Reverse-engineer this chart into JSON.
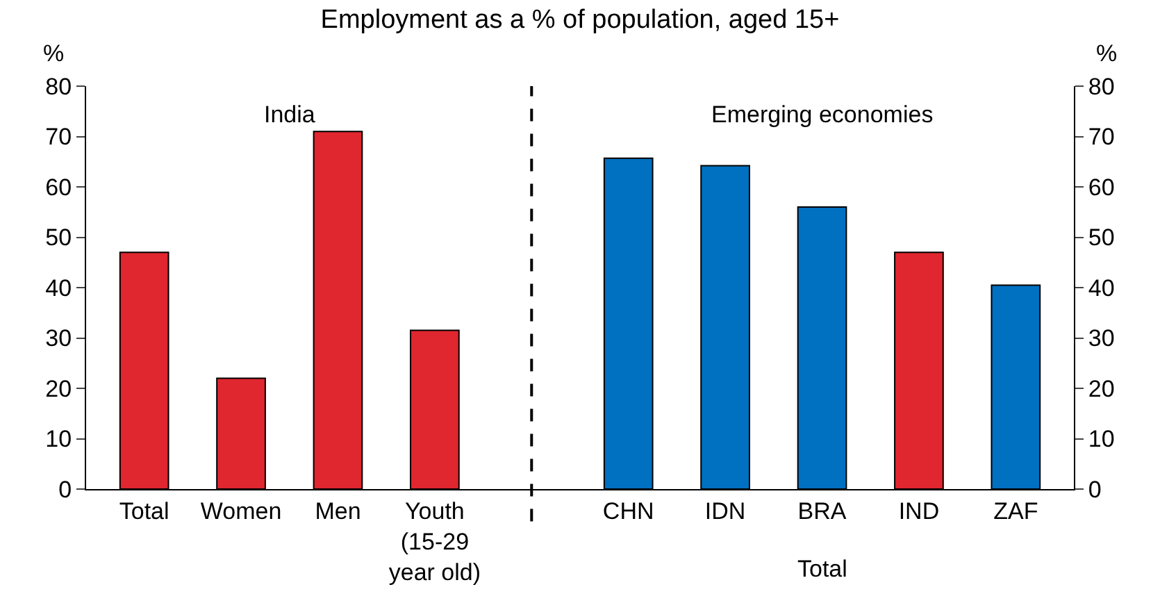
{
  "chart_data": {
    "type": "bar",
    "title": "Employment as a % of population, aged 15+",
    "categories": [
      "Total",
      "Women",
      "Men",
      "Youth\n(15-29\nyear old)",
      null,
      "CHN",
      "IDN",
      "BRA",
      "IND",
      "ZAF"
    ],
    "values": [
      47,
      22,
      71,
      31.5,
      null,
      65.7,
      64.2,
      56,
      47,
      40.5
    ],
    "colors": [
      "#e0262f",
      "#e0262f",
      "#e0262f",
      "#e0262f",
      "#e0262f",
      "#0070c0",
      "#0070c0",
      "#0070c0",
      "#e0262f",
      "#0070c0"
    ],
    "ylabel": "%",
    "y2label": "%",
    "ylim": [
      0,
      80
    ],
    "yticks": [
      0,
      10,
      20,
      30,
      40,
      50,
      60,
      70,
      80
    ],
    "y2lim": [
      0,
      80
    ],
    "y2ticks": [
      0,
      10,
      20,
      30,
      40,
      50,
      60,
      70,
      80
    ],
    "annotations": [
      "India",
      "Emerging economies",
      "Total"
    ]
  }
}
